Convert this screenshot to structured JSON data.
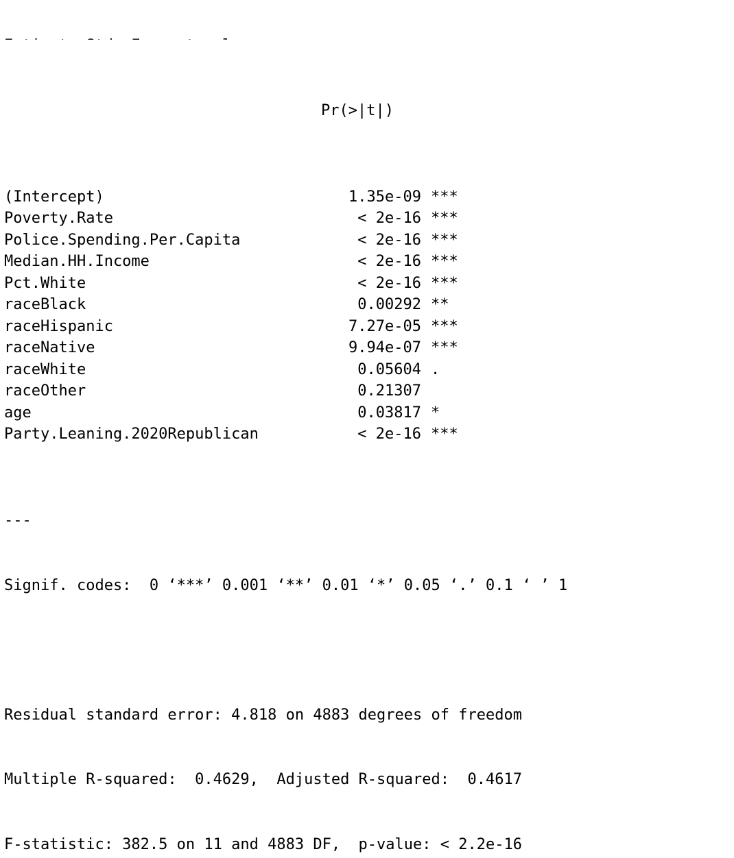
{
  "console": {
    "truncated_top_line": "Estimate Std. Error t value",
    "header_label": "Pr(>|t|)",
    "coefficients": [
      {
        "term": "(Intercept)",
        "pvalue": "1.35e-09",
        "stars": "***"
      },
      {
        "term": "Poverty.Rate",
        "pvalue": "< 2e-16",
        "stars": "***"
      },
      {
        "term": "Police.Spending.Per.Capita",
        "pvalue": "< 2e-16",
        "stars": "***"
      },
      {
        "term": "Median.HH.Income",
        "pvalue": "< 2e-16",
        "stars": "***"
      },
      {
        "term": "Pct.White",
        "pvalue": "< 2e-16",
        "stars": "***"
      },
      {
        "term": "raceBlack",
        "pvalue": "0.00292",
        "stars": "**"
      },
      {
        "term": "raceHispanic",
        "pvalue": "7.27e-05",
        "stars": "***"
      },
      {
        "term": "raceNative",
        "pvalue": "9.94e-07",
        "stars": "***"
      },
      {
        "term": "raceWhite",
        "pvalue": "0.05604",
        "stars": "."
      },
      {
        "term": "raceOther",
        "pvalue": "0.21307",
        "stars": ""
      },
      {
        "term": "age",
        "pvalue": "0.03817",
        "stars": "*"
      },
      {
        "term": "Party.Leaning.2020Republican",
        "pvalue": "< 2e-16",
        "stars": "***"
      }
    ],
    "separator": "---",
    "signif_codes": "Signif. codes:  0 ‘***’ 0.001 ‘**’ 0.01 ‘*’ 0.05 ‘.’ 0.1 ‘ ’ 1",
    "residual_se": "Residual standard error: 4.818 on 4883 degrees of freedom",
    "r_squared": "Multiple R-squared:  0.4629,\tAdjusted R-squared:  0.4617 ",
    "f_statistic": "F-statistic: 382.5 on 11 and 4883 DF,  p-value: < 2.2e-16"
  }
}
